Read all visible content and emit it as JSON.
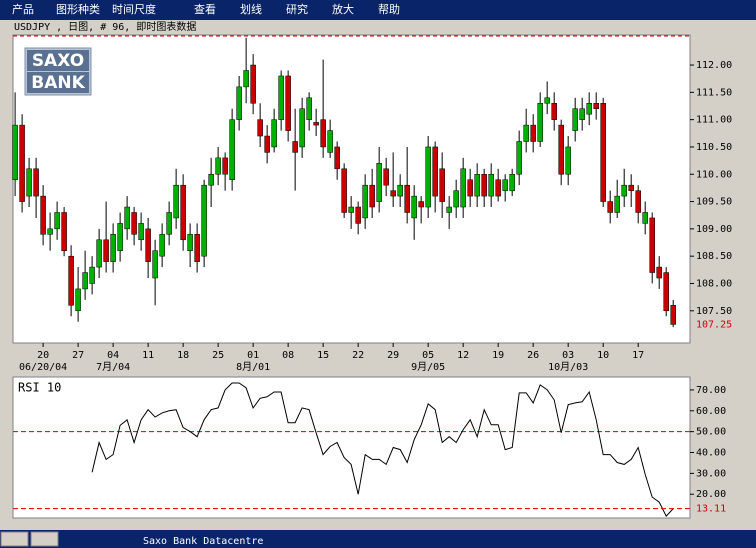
{
  "menu": [
    "产品",
    "图形种类",
    "时间尺度",
    "查看",
    "划线",
    "研究",
    "放大",
    "帮助"
  ],
  "header": "USDJPY , 日图, # 96, 即时图表数据",
  "logo": [
    "SAXO",
    "BANK"
  ],
  "status_bar": "Saxo Bank Datacentre",
  "chart_data": [
    {
      "type": "candlestick",
      "up_color": "#00b000",
      "down_color": "#c80000",
      "xlim": [
        -0.3,
        96.4
      ],
      "xticks": [
        {
          "value": 4,
          "label": "20"
        },
        {
          "value": 9,
          "label": "27"
        },
        {
          "value": 14,
          "label": "04"
        },
        {
          "value": 19,
          "label": "11"
        },
        {
          "value": 24,
          "label": "18"
        },
        {
          "value": 29,
          "label": "25"
        },
        {
          "value": 34,
          "label": "01"
        },
        {
          "value": 39,
          "label": "08"
        },
        {
          "value": 44,
          "label": "15"
        },
        {
          "value": 49,
          "label": "22"
        },
        {
          "value": 54,
          "label": "29"
        },
        {
          "value": 59,
          "label": "05"
        },
        {
          "value": 64,
          "label": "12"
        },
        {
          "value": 69,
          "label": "19"
        },
        {
          "value": 74,
          "label": "26"
        },
        {
          "value": 79,
          "label": "03"
        },
        {
          "value": 84,
          "label": "10"
        },
        {
          "value": 89,
          "label": "17"
        }
      ],
      "xticks_month": [
        {
          "value": 4,
          "label": "06/20/04"
        },
        {
          "value": 14,
          "label": "7月/04"
        },
        {
          "value": 34,
          "label": "8月/01"
        },
        {
          "value": 59,
          "label": "9月/05"
        },
        {
          "value": 79,
          "label": "10月/03"
        }
      ],
      "ylim": [
        106.91,
        112.55
      ],
      "yticks": [
        {
          "value": 107.5,
          "label": "107.50"
        },
        {
          "value": 108,
          "label": "108.00"
        },
        {
          "value": 108.5,
          "label": "108.50"
        },
        {
          "value": 109,
          "label": "109.00"
        },
        {
          "value": 109.5,
          "label": "109.50"
        },
        {
          "value": 110,
          "label": "110.00"
        },
        {
          "value": 110.5,
          "label": "110.50"
        },
        {
          "value": 111,
          "label": "111.00"
        },
        {
          "value": 111.5,
          "label": "111.50"
        },
        {
          "value": 112,
          "label": "112.00"
        }
      ],
      "open": [
        109.9,
        110.9,
        109.6,
        110.1,
        109.6,
        108.9,
        109.0,
        109.3,
        108.5,
        107.5,
        107.9,
        108.0,
        108.3,
        108.8,
        108.4,
        108.6,
        109.0,
        109.3,
        108.8,
        109.0,
        108.1,
        108.5,
        108.9,
        109.2,
        109.8,
        108.6,
        108.9,
        108.5,
        109.8,
        110.0,
        110.3,
        109.9,
        111.0,
        111.6,
        112.0,
        111.0,
        110.7,
        110.5,
        111.0,
        111.8,
        110.6,
        110.5,
        111.0,
        110.95,
        111.0,
        110.4,
        110.5,
        110.1,
        109.3,
        109.4,
        109.2,
        109.8,
        109.5,
        110.1,
        109.7,
        109.6,
        109.8,
        109.2,
        109.5,
        109.4,
        110.5,
        110.1,
        109.3,
        109.4,
        109.4,
        109.9,
        109.6,
        110.0,
        109.6,
        109.9,
        109.7,
        109.7,
        110.0,
        110.6,
        110.9,
        110.6,
        111.3,
        111.3,
        110.9,
        110.0,
        110.8,
        111.0,
        111.1,
        111.3,
        111.3,
        109.5,
        109.3,
        109.6,
        109.8,
        109.7,
        109.1,
        109.2,
        108.3,
        108.2,
        107.6
      ],
      "high": [
        111.5,
        111.1,
        110.3,
        110.3,
        109.8,
        109.3,
        109.5,
        109.4,
        108.7,
        108.3,
        108.6,
        108.5,
        109.0,
        109.5,
        109.1,
        109.3,
        109.6,
        109.4,
        109.3,
        109.2,
        108.8,
        109.1,
        109.5,
        110.1,
        110.0,
        109.1,
        109.1,
        109.9,
        110.3,
        110.5,
        110.4,
        111.2,
        111.8,
        112.5,
        112.2,
        111.3,
        110.9,
        111.2,
        111.9,
        111.9,
        111.2,
        111.4,
        111.5,
        111.2,
        112.1,
        111.0,
        110.6,
        110.2,
        109.6,
        109.5,
        110.0,
        110.1,
        110.5,
        110.3,
        110.4,
        110.0,
        110.5,
        109.8,
        109.6,
        110.7,
        110.6,
        110.4,
        109.6,
        109.9,
        110.3,
        110.1,
        110.2,
        110.1,
        110.2,
        110.1,
        110.0,
        110.1,
        110.8,
        111.2,
        111.1,
        111.5,
        111.7,
        111.5,
        111.0,
        110.7,
        111.4,
        111.4,
        111.5,
        111.5,
        111.4,
        109.7,
        109.9,
        110.1,
        110.0,
        109.8,
        109.5,
        109.3,
        108.5,
        108.3,
        107.7
      ],
      "low": [
        109.6,
        109.3,
        109.4,
        109.2,
        108.7,
        108.6,
        108.8,
        108.5,
        107.4,
        107.3,
        107.7,
        107.8,
        108.1,
        108.2,
        108.2,
        108.4,
        108.8,
        108.7,
        108.6,
        108.1,
        107.6,
        108.3,
        108.7,
        109.0,
        108.6,
        108.3,
        108.2,
        108.3,
        109.4,
        109.8,
        109.7,
        109.7,
        110.8,
        111.3,
        111.1,
        110.5,
        110.2,
        110.4,
        110.8,
        110.6,
        109.7,
        110.3,
        110.8,
        110.7,
        110.3,
        110.3,
        109.9,
        109.2,
        109.0,
        108.9,
        109.0,
        109.2,
        109.3,
        109.6,
        109.4,
        109.4,
        109.1,
        108.8,
        109.1,
        109.2,
        109.3,
        109.2,
        109.0,
        109.2,
        109.2,
        109.4,
        109.4,
        109.4,
        109.4,
        109.5,
        109.5,
        109.6,
        109.8,
        110.4,
        110.4,
        110.5,
        111.1,
        110.8,
        109.8,
        109.8,
        110.6,
        110.8,
        110.9,
        111.0,
        109.4,
        109.1,
        109.2,
        109.4,
        109.4,
        109.1,
        108.9,
        108.0,
        107.9,
        107.4,
        107.2
      ],
      "close": [
        110.9,
        109.5,
        110.1,
        109.6,
        108.9,
        109.0,
        109.3,
        108.6,
        107.6,
        107.9,
        108.2,
        108.3,
        108.8,
        108.4,
        108.9,
        109.1,
        109.4,
        108.9,
        109.1,
        108.4,
        108.6,
        108.9,
        109.3,
        109.8,
        108.8,
        108.9,
        108.4,
        109.8,
        110.0,
        110.3,
        110.0,
        111.0,
        111.6,
        111.9,
        111.3,
        110.7,
        110.4,
        111.0,
        111.8,
        110.8,
        110.4,
        111.2,
        111.4,
        110.9,
        110.5,
        110.8,
        110.1,
        109.3,
        109.4,
        109.1,
        109.8,
        109.4,
        110.2,
        109.8,
        109.6,
        109.8,
        109.3,
        109.6,
        109.4,
        110.5,
        109.6,
        109.5,
        109.4,
        109.7,
        110.1,
        109.6,
        110.0,
        109.6,
        110.0,
        109.6,
        109.9,
        110.0,
        110.6,
        110.9,
        110.6,
        111.3,
        111.4,
        111.0,
        110.0,
        110.5,
        111.2,
        111.2,
        111.3,
        111.2,
        109.5,
        109.3,
        109.6,
        109.8,
        109.7,
        109.3,
        109.3,
        108.2,
        108.1,
        107.5,
        107.25
      ]
    },
    {
      "type": "line",
      "title": "RSI 10",
      "color": "#000000",
      "xlim": [
        -0.3,
        96.4
      ],
      "ylim": [
        8.6,
        76.2
      ],
      "yticks": [
        {
          "value": 20,
          "label": "20.00"
        },
        {
          "value": 30,
          "label": "30.00"
        },
        {
          "value": 40,
          "label": "40.00"
        },
        {
          "value": 50,
          "label": "50.00"
        },
        {
          "value": 60,
          "label": "60.00"
        },
        {
          "value": 70,
          "label": "70.00"
        }
      ],
      "reference_lines": [
        50
      ],
      "values": [
        null,
        null,
        null,
        null,
        null,
        null,
        null,
        null,
        null,
        null,
        null,
        30.5,
        44.8,
        36.7,
        39,
        53,
        55.7,
        44.8,
        55.7,
        60.5,
        57,
        59,
        60,
        60.5,
        52,
        50,
        47.6,
        55.7,
        60.5,
        61.4,
        70,
        73.3,
        73.3,
        71,
        61.4,
        66,
        66.7,
        69,
        69,
        54.3,
        54.3,
        61.4,
        60.5,
        49.5,
        39,
        42.9,
        44.8,
        37.6,
        34.3,
        20,
        39,
        36.7,
        36.7,
        34.3,
        42.4,
        41.4,
        35.2,
        46.2,
        53.3,
        63.3,
        60.5,
        44.8,
        47.6,
        44.8,
        51,
        55.7,
        47.6,
        60.5,
        53.3,
        53.3,
        41.4,
        42.4,
        68.6,
        68.6,
        63.8,
        72.4,
        70,
        65.2,
        49.5,
        62.9,
        63.8,
        64.3,
        69,
        55.7,
        39,
        39,
        35.2,
        34.3,
        36.7,
        42.4,
        29.5,
        18.6,
        16.2,
        9.5,
        13.11
      ]
    }
  ]
}
